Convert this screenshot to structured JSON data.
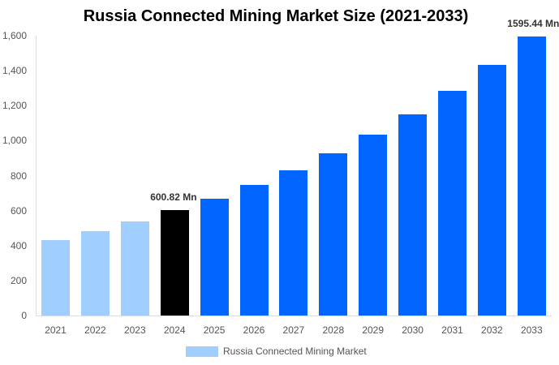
{
  "chart_data": {
    "type": "bar",
    "title": "Russia Connected Mining Market Size (2021-2033)",
    "xlabel": "",
    "ylabel": "",
    "ylim": [
      0,
      1600
    ],
    "yticks": [
      "0",
      "200",
      "400",
      "600",
      "800",
      "1,000",
      "1,200",
      "1,400",
      "1,600"
    ],
    "grid": false,
    "legend_position": "bottom",
    "categories": [
      "2021",
      "2022",
      "2023",
      "2024",
      "2025",
      "2026",
      "2027",
      "2028",
      "2029",
      "2030",
      "2031",
      "2032",
      "2033"
    ],
    "series": [
      {
        "name": "Russia Connected Mining Market",
        "values": [
          431,
          482,
          538,
          600.82,
          668,
          747,
          830,
          928,
          1034,
          1150,
          1285,
          1433,
          1595.44
        ],
        "colors": [
          "#a0cfff",
          "#a0cfff",
          "#a0cfff",
          "#000000",
          "#0066ff",
          "#0066ff",
          "#0066ff",
          "#0066ff",
          "#0066ff",
          "#0066ff",
          "#0066ff",
          "#0066ff",
          "#0066ff"
        ]
      }
    ],
    "annotations": [
      {
        "category": "2024",
        "text": "600.82 Mn"
      },
      {
        "category": "2033",
        "text": "1595.44 Mn"
      }
    ]
  },
  "legend": {
    "label": "Russia Connected Mining Market",
    "color": "#a0cfff"
  }
}
